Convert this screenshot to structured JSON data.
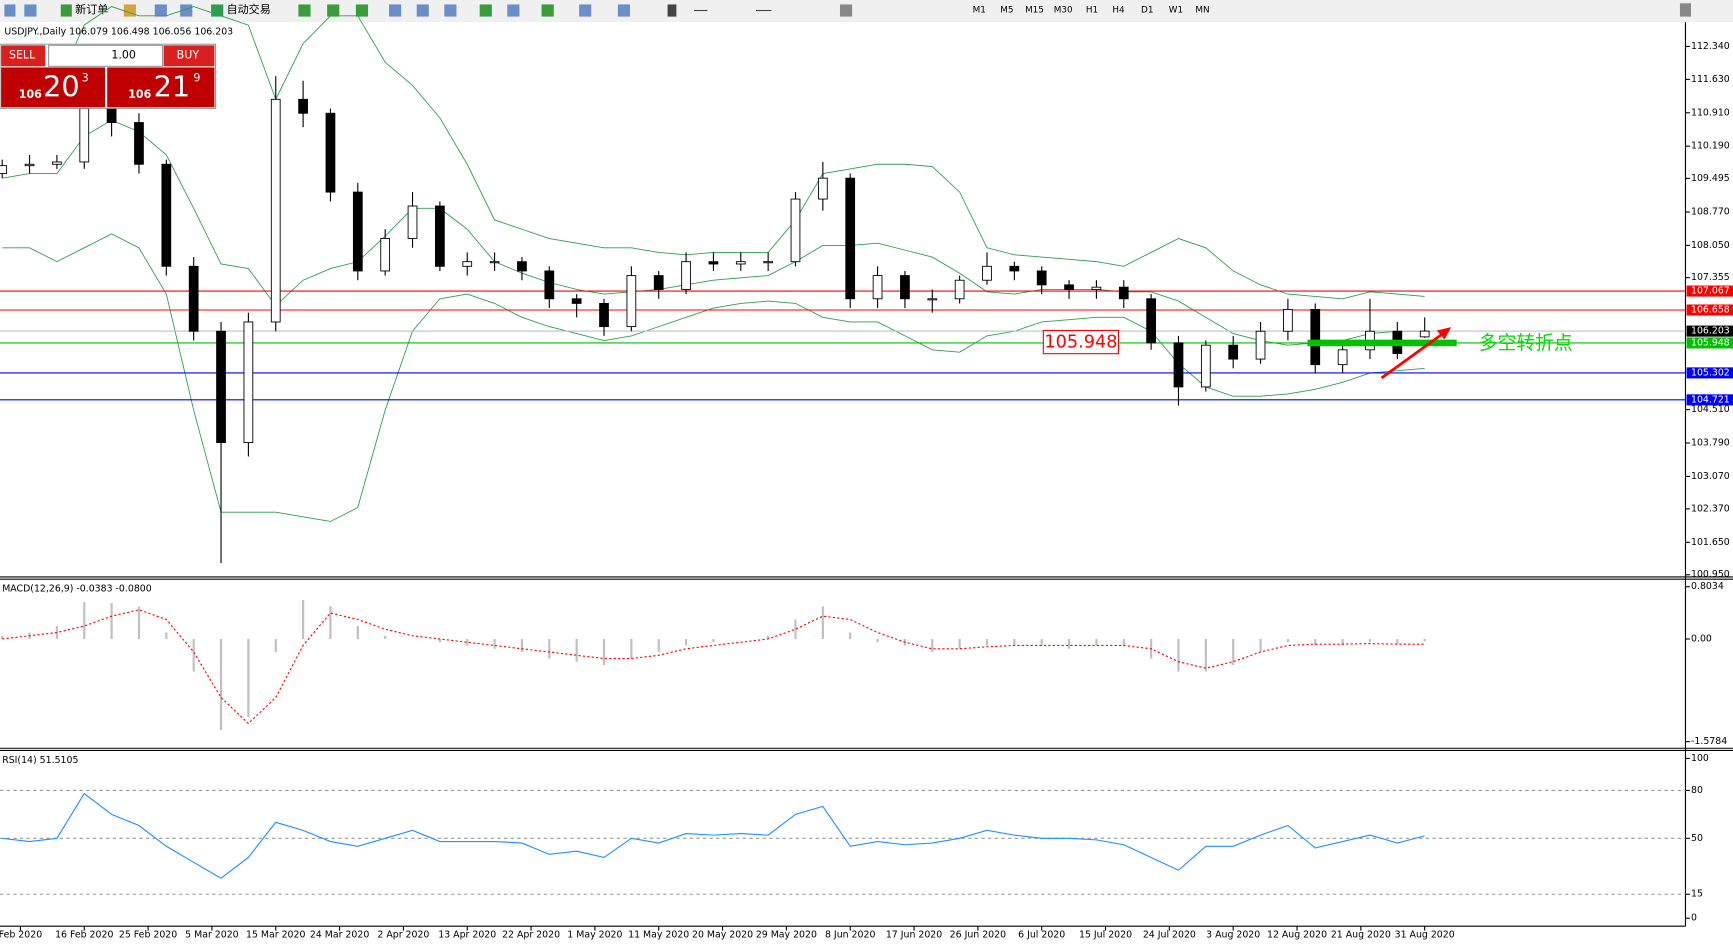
{
  "toolbar": {
    "new_order": "新订单",
    "auto_trading": "自动交易",
    "timeframes": [
      "M1",
      "M5",
      "M15",
      "M30",
      "H1",
      "H4",
      "D1",
      "W1",
      "MN"
    ]
  },
  "trade_panel": {
    "sell": "SELL",
    "lot": "1.00",
    "buy": "BUY",
    "sell_big": "106",
    "sell_pips": "20",
    "sell_frac": "3",
    "buy_big": "106",
    "buy_pips": "21",
    "buy_frac": "9"
  },
  "chart_data": {
    "type": "candlestick",
    "title": "USDJPY.,Daily  106.079 106.498 106.056 106.203",
    "x": [
      0,
      3,
      6,
      9,
      12,
      15,
      18,
      21,
      24,
      27,
      30,
      33,
      36,
      39,
      42,
      45,
      48,
      51,
      54,
      57,
      60,
      63,
      66,
      69,
      72,
      75,
      78,
      81,
      84,
      87,
      90,
      93,
      96,
      99,
      102,
      105,
      108,
      111,
      114,
      117,
      120,
      123,
      126,
      129,
      132,
      135,
      138,
      141,
      144,
      147,
      150,
      153,
      156
    ],
    "open": [
      109.6,
      109.77,
      109.8,
      109.85,
      111.0,
      110.7,
      109.8,
      107.6,
      106.2,
      103.8,
      106.4,
      111.2,
      110.9,
      109.2,
      107.5,
      108.2,
      108.9,
      107.6,
      107.7,
      107.7,
      107.5,
      106.9,
      106.8,
      106.3,
      107.4,
      107.1,
      107.7,
      107.65,
      107.7,
      107.7,
      109.05,
      109.5,
      106.9,
      107.4,
      106.9,
      106.9,
      107.3,
      107.6,
      107.5,
      107.2,
      107.1,
      107.15,
      106.9,
      105.95,
      105.0,
      105.9,
      105.6,
      106.2,
      106.67,
      105.48,
      105.8,
      106.2,
      106.079
    ],
    "high": [
      109.9,
      110.0,
      110.0,
      111.6,
      111.3,
      110.9,
      109.9,
      107.8,
      106.4,
      106.6,
      111.7,
      111.6,
      111.0,
      109.4,
      108.4,
      109.2,
      109.0,
      107.9,
      107.9,
      107.8,
      107.6,
      107.0,
      106.9,
      107.6,
      107.5,
      107.9,
      107.9,
      107.9,
      107.9,
      109.2,
      109.85,
      109.6,
      107.6,
      107.5,
      107.1,
      107.4,
      107.9,
      107.7,
      107.6,
      107.3,
      107.3,
      107.3,
      107.0,
      106.1,
      106.0,
      106.1,
      106.4,
      106.9,
      106.8,
      106.0,
      106.9,
      106.4,
      106.498
    ],
    "low": [
      109.5,
      109.6,
      109.7,
      109.7,
      110.4,
      109.6,
      107.4,
      106.0,
      101.2,
      103.5,
      106.2,
      110.6,
      109.0,
      107.3,
      107.4,
      108.0,
      107.5,
      107.4,
      107.5,
      107.3,
      106.7,
      106.5,
      106.1,
      106.2,
      106.9,
      107.0,
      107.5,
      107.5,
      107.5,
      107.6,
      108.8,
      106.7,
      106.7,
      106.7,
      106.6,
      106.8,
      107.2,
      107.3,
      107.0,
      106.9,
      106.9,
      106.7,
      105.8,
      104.6,
      104.9,
      105.4,
      105.5,
      106.0,
      105.3,
      105.3,
      105.6,
      105.6,
      106.056
    ],
    "close": [
      109.77,
      109.8,
      109.85,
      111.0,
      110.7,
      109.8,
      107.6,
      106.2,
      103.8,
      106.4,
      111.2,
      110.9,
      109.2,
      107.5,
      108.2,
      108.9,
      107.6,
      107.7,
      107.7,
      107.5,
      106.9,
      106.8,
      106.3,
      107.4,
      107.1,
      107.7,
      107.65,
      107.7,
      107.7,
      109.05,
      109.5,
      106.9,
      107.4,
      106.9,
      106.9,
      107.3,
      107.6,
      107.5,
      107.2,
      107.1,
      107.15,
      106.9,
      105.95,
      105.0,
      105.9,
      105.6,
      106.2,
      106.67,
      105.48,
      105.8,
      106.2,
      105.72,
      106.203
    ],
    "bollinger": [
      {
        "color": "#2e9e4f",
        "values": [
          111.0,
          111.2,
          111.5,
          112.8,
          113.2,
          113.0,
          113.0,
          113.2,
          113.0,
          112.8,
          111.2,
          112.4,
          113.0,
          113.0,
          112.0,
          111.5,
          110.8,
          109.8,
          108.6,
          108.4,
          108.2,
          108.1,
          108.0,
          108.0,
          107.9,
          107.85,
          107.9,
          107.9,
          107.9,
          108.6,
          109.6,
          109.7,
          109.8,
          109.8,
          109.75,
          109.2,
          108.0,
          107.85,
          107.8,
          107.75,
          107.7,
          107.6,
          107.9,
          108.2,
          108.0,
          107.5,
          107.2,
          107.0,
          106.95,
          106.9,
          107.05,
          107.0,
          106.95
        ]
      },
      {
        "color": "#2e9e4f",
        "values": [
          109.5,
          109.6,
          109.6,
          110.4,
          110.75,
          110.5,
          110.0,
          108.85,
          107.65,
          107.55,
          106.75,
          107.3,
          107.55,
          107.7,
          108.25,
          108.85,
          108.85,
          108.4,
          107.7,
          107.45,
          107.25,
          107.1,
          107.0,
          107.05,
          107.1,
          107.2,
          107.3,
          107.35,
          107.4,
          107.7,
          108.05,
          108.05,
          108.1,
          107.95,
          107.8,
          107.45,
          107.05,
          107.0,
          107.1,
          107.1,
          107.1,
          107.05,
          107.05,
          106.85,
          106.5,
          106.15,
          106.0,
          105.9,
          105.95,
          106.0,
          106.15,
          106.2,
          106.2
        ]
      },
      {
        "color": "#2e9e4f",
        "values": [
          108.0,
          108.0,
          107.7,
          108.0,
          108.3,
          108.0,
          107.0,
          104.5,
          102.3,
          102.3,
          102.3,
          102.2,
          102.1,
          102.4,
          104.5,
          106.2,
          106.9,
          107.0,
          106.8,
          106.5,
          106.3,
          106.15,
          106.0,
          106.1,
          106.3,
          106.5,
          106.7,
          106.8,
          106.85,
          106.8,
          106.5,
          106.4,
          106.4,
          106.1,
          105.8,
          105.75,
          106.1,
          106.2,
          106.4,
          106.45,
          106.5,
          106.5,
          106.2,
          105.5,
          105.0,
          104.8,
          104.8,
          104.85,
          104.95,
          105.1,
          105.3,
          105.35,
          105.4
        ]
      }
    ],
    "xlim": [
      -0.24,
      184.6
    ],
    "xticks": [
      {
        "value": 2,
        "label": "Feb 2020"
      },
      {
        "value": 9,
        "label": "16 Feb 2020"
      },
      {
        "value": 16,
        "label": "25 Feb 2020"
      },
      {
        "value": 23,
        "label": "5 Mar 2020"
      },
      {
        "value": 30,
        "label": "15 Mar 2020"
      },
      {
        "value": 37,
        "label": "24 Mar 2020"
      },
      {
        "value": 44,
        "label": "2 Apr 2020"
      },
      {
        "value": 51,
        "label": "13 Apr 2020"
      },
      {
        "value": 58,
        "label": "22 Apr 2020"
      },
      {
        "value": 65,
        "label": "1 May 2020"
      },
      {
        "value": 72,
        "label": "11 May 2020"
      },
      {
        "value": 79,
        "label": "20 May 2020"
      },
      {
        "value": 86,
        "label": "29 May 2020"
      },
      {
        "value": 93,
        "label": "8 Jun 2020"
      },
      {
        "value": 100,
        "label": "17 Jun 2020"
      },
      {
        "value": 107,
        "label": "26 Jun 2020"
      },
      {
        "value": 114,
        "label": "6 Jul 2020"
      },
      {
        "value": 121,
        "label": "15 Jul 2020"
      },
      {
        "value": 128,
        "label": "24 Jul 2020"
      },
      {
        "value": 135,
        "label": "3 Aug 2020"
      },
      {
        "value": 142,
        "label": "12 Aug 2020"
      },
      {
        "value": 149,
        "label": "21 Aug 2020"
      },
      {
        "value": 156,
        "label": "31 Aug 2020"
      }
    ],
    "ylim": [
      100.903,
      112.817
    ],
    "yticks": [
      {
        "value": 112.34,
        "label": "112.340"
      },
      {
        "value": 111.63,
        "label": "111.630"
      },
      {
        "value": 110.91,
        "label": "110.910"
      },
      {
        "value": 110.19,
        "label": "110.190"
      },
      109.495,
      {
        "value": 108.77,
        "label": "108.770"
      },
      {
        "value": 108.05,
        "label": "108.050"
      },
      107.355,
      {
        "value": 104.51,
        "label": "104.510"
      },
      {
        "value": 103.79,
        "label": "103.790"
      },
      {
        "value": 103.07,
        "label": "103.070"
      },
      {
        "value": 102.37,
        "label": "102.370"
      },
      {
        "value": 101.65,
        "label": "101.650"
      },
      {
        "value": 100.95,
        "label": "100.950"
      }
    ],
    "hlines": [
      {
        "value": 107.067,
        "color": "#ff0000"
      },
      {
        "value": 106.658,
        "color": "#ff0000"
      },
      {
        "value": 106.203,
        "color": "#c0c0c0"
      },
      {
        "value": 105.948,
        "color": "#00c000"
      },
      {
        "value": 105.302,
        "color": "#0000ff"
      },
      {
        "value": 104.721,
        "color": "#0000ff"
      }
    ],
    "annotations": [
      {
        "text": "105.948",
        "color": "#ff0000"
      },
      {
        "text": "多空转折点",
        "color": "#00dd00"
      }
    ],
    "macd": {
      "title": "MACD(12,26,9) -0.0383 -0.0800",
      "ylim": [
        -1.68,
        0.92
      ],
      "yticks": [
        0.8034,
        {
          "value": 0,
          "label": "0.00"
        },
        -1.5784
      ],
      "histogram": {
        "color": "#c0c0c0",
        "values": [
          0.05,
          0.1,
          0.2,
          0.57,
          0.55,
          0.5,
          0.1,
          -0.5,
          -1.4,
          -1.2,
          -0.2,
          0.6,
          0.5,
          0.2,
          0.05,
          0.0,
          -0.05,
          -0.1,
          -0.15,
          -0.2,
          -0.3,
          -0.35,
          -0.4,
          -0.3,
          -0.2,
          -0.1,
          -0.05,
          0.0,
          0.05,
          0.3,
          0.5,
          0.1,
          -0.05,
          -0.1,
          -0.2,
          -0.15,
          -0.1,
          -0.1,
          -0.1,
          -0.15,
          -0.1,
          -0.1,
          -0.3,
          -0.5,
          -0.5,
          -0.4,
          -0.2,
          -0.05,
          -0.1,
          -0.1,
          -0.05,
          -0.08,
          -0.0383
        ]
      },
      "signal": {
        "color": "#ff0000",
        "values": [
          0.0,
          0.05,
          0.1,
          0.2,
          0.35,
          0.45,
          0.3,
          -0.2,
          -0.9,
          -1.3,
          -0.9,
          -0.1,
          0.4,
          0.3,
          0.15,
          0.05,
          0.0,
          -0.05,
          -0.1,
          -0.15,
          -0.2,
          -0.25,
          -0.3,
          -0.3,
          -0.25,
          -0.15,
          -0.1,
          -0.05,
          0.0,
          0.15,
          0.35,
          0.3,
          0.1,
          -0.05,
          -0.15,
          -0.15,
          -0.12,
          -0.1,
          -0.1,
          -0.1,
          -0.1,
          -0.1,
          -0.15,
          -0.35,
          -0.45,
          -0.35,
          -0.2,
          -0.1,
          -0.08,
          -0.08,
          -0.07,
          -0.08,
          -0.08
        ]
      }
    },
    "rsi": {
      "title": "RSI(14) 51.5105",
      "ylim": [
        -5,
        105
      ],
      "yticks": [
        100,
        80,
        50,
        15,
        0
      ],
      "levels": [
        80,
        50,
        15
      ],
      "color": "#1e90ff",
      "values": [
        50,
        48,
        50,
        78,
        65,
        58,
        45,
        35,
        25,
        38,
        60,
        55,
        48,
        45,
        50,
        55,
        48,
        48,
        48,
        47,
        40,
        42,
        38,
        50,
        47,
        53,
        52,
        53,
        52,
        65,
        70,
        45,
        48,
        46,
        47,
        50,
        55,
        52,
        50,
        50,
        49,
        46,
        38,
        30,
        45,
        45,
        52,
        58,
        44,
        48,
        52,
        47,
        51.5105
      ]
    }
  }
}
